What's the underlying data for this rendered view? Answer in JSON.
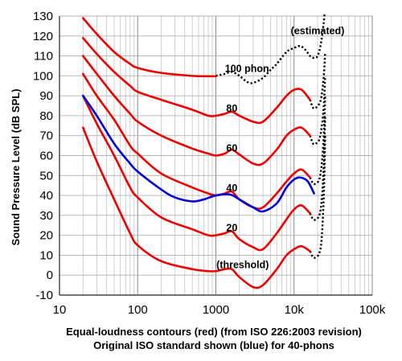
{
  "chart_data": {
    "type": "line",
    "xlabel_line1": "Equal-loudness contours (red) (from ISO 226:2003 revision)",
    "xlabel_line2": "Original ISO standard shown (blue) for 40-phons",
    "ylabel": "Sound Pressure Level (dB SPL)",
    "x_scale": "log",
    "xlim": [
      10,
      100000
    ],
    "ylim": [
      -10,
      130
    ],
    "x_ticks": [
      {
        "value": 10,
        "label": "10"
      },
      {
        "value": 100,
        "label": "100"
      },
      {
        "value": 1000,
        "label": "1000"
      },
      {
        "value": 10000,
        "label": "10k"
      },
      {
        "value": 100000,
        "label": "100k"
      }
    ],
    "y_ticks": [
      -10,
      0,
      10,
      20,
      30,
      40,
      50,
      60,
      70,
      80,
      90,
      100,
      110,
      120,
      130
    ],
    "grid": true,
    "colors": {
      "iso2003": "#ee0000",
      "original": "#0000dd",
      "estimated": "#000000"
    },
    "series": [
      {
        "name": "",
        "kind": "iso2003",
        "points": [
          [
            20,
            74
          ],
          [
            30,
            57
          ],
          [
            50,
            38
          ],
          [
            80,
            21
          ],
          [
            100,
            15
          ],
          [
            200,
            7
          ],
          [
            500,
            3
          ],
          [
            800,
            2
          ],
          [
            1000,
            2
          ],
          [
            1300,
            3
          ],
          [
            1600,
            3
          ],
          [
            2000,
            -1
          ],
          [
            3000,
            -6
          ],
          [
            4000,
            -5
          ],
          [
            6000,
            3
          ],
          [
            8000,
            10
          ],
          [
            10000,
            13
          ],
          [
            12500,
            14.5
          ],
          [
            16000,
            12
          ]
        ]
      },
      {
        "name": "",
        "kind": "iso2003",
        "points": [
          [
            20,
            90
          ],
          [
            30,
            76
          ],
          [
            50,
            60
          ],
          [
            80,
            44
          ],
          [
            100,
            39
          ],
          [
            200,
            29
          ],
          [
            500,
            23
          ],
          [
            800,
            20
          ],
          [
            1000,
            20
          ],
          [
            1300,
            21
          ],
          [
            1600,
            22
          ],
          [
            2000,
            18
          ],
          [
            3000,
            14
          ],
          [
            4000,
            13
          ],
          [
            6000,
            21
          ],
          [
            8000,
            28
          ],
          [
            10000,
            33
          ],
          [
            12500,
            35
          ],
          [
            16000,
            31
          ]
        ]
      },
      {
        "name": "",
        "kind": "iso2003",
        "points": [
          [
            20,
            101
          ],
          [
            30,
            90
          ],
          [
            50,
            78
          ],
          [
            80,
            65
          ],
          [
            100,
            61
          ],
          [
            200,
            51
          ],
          [
            500,
            44
          ],
          [
            800,
            41
          ],
          [
            1000,
            40
          ],
          [
            1300,
            41
          ],
          [
            1600,
            42
          ],
          [
            2000,
            38
          ],
          [
            3000,
            34
          ],
          [
            4000,
            34
          ],
          [
            6000,
            41
          ],
          [
            8000,
            47
          ],
          [
            10000,
            51
          ],
          [
            12500,
            53
          ],
          [
            16000,
            49
          ]
        ]
      },
      {
        "name": "",
        "kind": "iso2003",
        "points": [
          [
            20,
            110
          ],
          [
            30,
            101
          ],
          [
            50,
            90
          ],
          [
            80,
            81
          ],
          [
            100,
            77
          ],
          [
            200,
            70
          ],
          [
            500,
            63.5
          ],
          [
            800,
            61
          ],
          [
            1000,
            60
          ],
          [
            1300,
            61
          ],
          [
            1600,
            63
          ],
          [
            2000,
            60.5
          ],
          [
            3000,
            56
          ],
          [
            4000,
            56
          ],
          [
            6000,
            63
          ],
          [
            8000,
            70
          ],
          [
            10000,
            73
          ],
          [
            12500,
            74
          ],
          [
            16000,
            70
          ]
        ]
      },
      {
        "name": "",
        "kind": "iso2003",
        "points": [
          [
            20,
            119
          ],
          [
            30,
            111
          ],
          [
            50,
            102
          ],
          [
            80,
            95
          ],
          [
            100,
            92
          ],
          [
            200,
            88
          ],
          [
            500,
            83
          ],
          [
            800,
            80
          ],
          [
            1000,
            80
          ],
          [
            1300,
            81
          ],
          [
            1600,
            82
          ],
          [
            2000,
            80
          ],
          [
            3000,
            77
          ],
          [
            4000,
            77
          ],
          [
            6000,
            84
          ],
          [
            8000,
            90
          ],
          [
            10000,
            93
          ],
          [
            12500,
            93
          ],
          [
            16000,
            88
          ]
        ]
      },
      {
        "name": "",
        "kind": "iso2003",
        "points": [
          [
            20,
            129
          ],
          [
            30,
            121
          ],
          [
            50,
            112
          ],
          [
            80,
            106
          ],
          [
            100,
            104
          ],
          [
            200,
            101.5
          ],
          [
            500,
            100
          ],
          [
            800,
            99.8
          ],
          [
            1000,
            99.8
          ]
        ]
      },
      {
        "name": "",
        "kind": "original",
        "points": [
          [
            20,
            90
          ],
          [
            30,
            80
          ],
          [
            50,
            66
          ],
          [
            80,
            56
          ],
          [
            100,
            52
          ],
          [
            200,
            43
          ],
          [
            300,
            39
          ],
          [
            500,
            37
          ],
          [
            700,
            38
          ],
          [
            1000,
            40
          ],
          [
            1500,
            40.5
          ],
          [
            2000,
            38
          ],
          [
            3000,
            34
          ],
          [
            4000,
            32
          ],
          [
            6000,
            36
          ],
          [
            8000,
            44
          ],
          [
            10000,
            48
          ],
          [
            12000,
            49
          ],
          [
            15000,
            47
          ],
          [
            18000,
            41
          ]
        ]
      },
      {
        "name": "",
        "kind": "estimated",
        "points": [
          [
            1000,
            100
          ],
          [
            1300,
            101
          ],
          [
            1600,
            102
          ],
          [
            2000,
            100
          ],
          [
            2500,
            97
          ],
          [
            3000,
            96.5
          ],
          [
            4000,
            99
          ],
          [
            5000,
            103
          ],
          [
            6000,
            106
          ],
          [
            8000,
            112
          ],
          [
            10000,
            114
          ],
          [
            12000,
            115
          ],
          [
            14000,
            113
          ],
          [
            16000,
            110
          ],
          [
            18000,
            109
          ],
          [
            20000,
            110
          ],
          [
            22000,
            116
          ],
          [
            24000,
            127
          ],
          [
            25000,
            135
          ]
        ]
      },
      {
        "name": "",
        "kind": "estimated",
        "points": [
          [
            16000,
            88
          ],
          [
            17500,
            84
          ],
          [
            19000,
            84
          ],
          [
            21000,
            86
          ],
          [
            22500,
            90
          ],
          [
            24000,
            100
          ],
          [
            25000,
            112
          ]
        ]
      },
      {
        "name": "",
        "kind": "estimated",
        "points": [
          [
            16000,
            70
          ],
          [
            17500,
            66
          ],
          [
            19000,
            66
          ],
          [
            21000,
            68
          ],
          [
            22500,
            74
          ],
          [
            24000,
            85
          ],
          [
            25000,
            100
          ]
        ]
      },
      {
        "name": "",
        "kind": "estimated",
        "points": [
          [
            16000,
            49
          ],
          [
            17500,
            46
          ],
          [
            19000,
            46
          ],
          [
            21000,
            48
          ],
          [
            22500,
            55
          ],
          [
            24000,
            70
          ],
          [
            25000,
            90
          ]
        ]
      },
      {
        "name": "",
        "kind": "estimated",
        "points": [
          [
            16000,
            31
          ],
          [
            17500,
            28
          ],
          [
            19000,
            28
          ],
          [
            21000,
            30
          ],
          [
            22500,
            37
          ],
          [
            24000,
            55
          ],
          [
            25000,
            80
          ]
        ]
      },
      {
        "name": "",
        "kind": "estimated",
        "points": [
          [
            16000,
            12
          ],
          [
            17500,
            9
          ],
          [
            19000,
            9
          ],
          [
            21000,
            11
          ],
          [
            22500,
            18
          ],
          [
            24000,
            40
          ],
          [
            25000,
            70
          ]
        ]
      }
    ],
    "annotations": [
      {
        "text": "(estimated)",
        "x": 20000,
        "y": 121
      },
      {
        "text": "100 phon",
        "x": 2500,
        "y": 102
      },
      {
        "text": "80",
        "x": 1600,
        "y": 82
      },
      {
        "text": "60",
        "x": 1600,
        "y": 62
      },
      {
        "text": "40",
        "x": 1600,
        "y": 42
      },
      {
        "text": "20",
        "x": 1600,
        "y": 22
      },
      {
        "text": "(threshold)",
        "x": 2200,
        "y": 3.5
      }
    ]
  }
}
